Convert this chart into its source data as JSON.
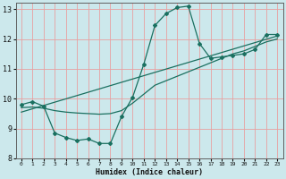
{
  "xlabel": "Humidex (Indice chaleur)",
  "bg_color": "#cce8ec",
  "grid_color": "#e8a0a0",
  "line_color": "#1a7060",
  "xlim": [
    -0.5,
    23.5
  ],
  "ylim": [
    8,
    13.2
  ],
  "yticks": [
    8,
    9,
    10,
    11,
    12,
    13
  ],
  "xticks": [
    0,
    1,
    2,
    3,
    4,
    5,
    6,
    7,
    8,
    9,
    10,
    11,
    12,
    13,
    14,
    15,
    16,
    17,
    18,
    19,
    20,
    21,
    22,
    23
  ],
  "curve1_x": [
    0,
    1,
    2,
    3,
    4,
    5,
    6,
    7,
    8,
    9,
    10,
    11,
    12,
    13,
    14,
    15,
    16,
    17,
    18,
    19,
    20,
    21,
    22,
    23
  ],
  "curve1_y": [
    9.8,
    9.9,
    9.75,
    8.85,
    8.7,
    8.6,
    8.65,
    8.5,
    8.5,
    9.4,
    10.05,
    11.15,
    12.45,
    12.85,
    13.05,
    13.1,
    11.85,
    11.35,
    11.4,
    11.45,
    11.5,
    11.65,
    12.15,
    12.15
  ],
  "curve2_x": [
    0,
    1,
    2,
    3,
    4,
    5,
    6,
    7,
    8,
    9,
    10,
    11,
    12,
    13,
    14,
    15,
    16,
    17,
    18,
    19,
    20,
    21,
    22,
    23
  ],
  "curve2_y": [
    9.7,
    9.72,
    9.68,
    9.6,
    9.55,
    9.52,
    9.5,
    9.48,
    9.5,
    9.6,
    9.85,
    10.15,
    10.45,
    10.6,
    10.75,
    10.9,
    11.05,
    11.2,
    11.35,
    11.5,
    11.6,
    11.75,
    11.9,
    12.0
  ],
  "curve3_x": [
    0,
    23
  ],
  "curve3_y": [
    9.55,
    12.1
  ]
}
